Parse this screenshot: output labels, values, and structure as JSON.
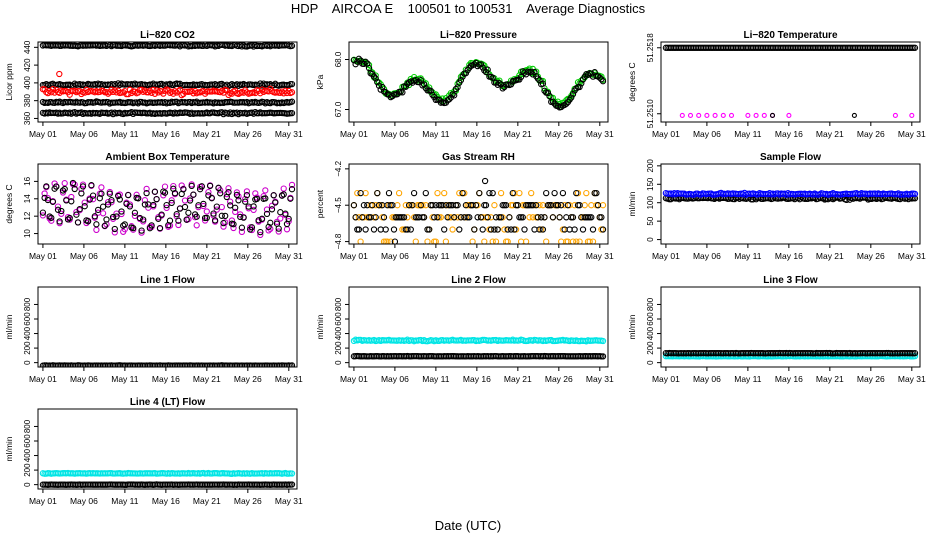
{
  "figure": {
    "title": "HDP    AIRCOA E    100501 to 100531    Average Diagnostics",
    "xlabel": "Date (UTC)"
  },
  "chart_data": [
    {
      "type": "scatter",
      "title": "Li−820 CO2",
      "ylabel": "Licor ppm",
      "yticks": [
        "360",
        "380",
        "400",
        "420",
        "440"
      ],
      "ylim": [
        356,
        446
      ],
      "series": [
        {
          "name": "black-upper",
          "color": "#000000",
          "pattern": "flat",
          "level": 442,
          "noise": 0.8
        },
        {
          "name": "black-mid",
          "color": "#000000",
          "pattern": "flat",
          "level": 398,
          "noise": 1.0
        },
        {
          "name": "red",
          "color": "#ff0000",
          "pattern": "flat",
          "level": 390,
          "noise": 2.5,
          "outliers": [
            [
              3,
              410
            ]
          ]
        },
        {
          "name": "black-low",
          "color": "#000000",
          "pattern": "flat",
          "level": 378,
          "noise": 0.8
        },
        {
          "name": "black-bottom",
          "color": "#000000",
          "pattern": "flat",
          "level": 366,
          "noise": 0.8
        }
      ]
    },
    {
      "type": "scatter",
      "title": "Li−820 Pressure",
      "ylabel": "kPa",
      "yticks": [
        "67.0",
        "68.0"
      ],
      "ylim": [
        66.75,
        68.35
      ],
      "series": [
        {
          "name": "green",
          "color": "#00cc00",
          "pattern": "wave",
          "level": 67.55,
          "amp": 0.45,
          "noise": 0.05
        },
        {
          "name": "black",
          "color": "#000000",
          "pattern": "wave",
          "level": 67.52,
          "amp": 0.45,
          "noise": 0.05
        }
      ]
    },
    {
      "type": "scatter",
      "title": "Li−820 Temperature",
      "ylabel": "degrees C",
      "yticks": [
        "51.2510",
        "51.2518"
      ],
      "ylim": [
        51.2509,
        51.25187
      ],
      "series": [
        {
          "name": "black-top",
          "color": "#000000",
          "pattern": "flat",
          "level": 51.2518,
          "noise": 0
        },
        {
          "name": "magenta-low",
          "color": "#ff00ff",
          "pattern": "sparse",
          "level": 51.25098,
          "days": [
            3,
            4,
            5,
            6,
            7,
            8,
            9,
            11,
            12,
            13,
            14,
            16,
            29,
            31
          ]
        },
        {
          "name": "black-low",
          "color": "#000000",
          "pattern": "sparse",
          "level": 51.25098,
          "days": [
            14,
            24
          ]
        }
      ]
    },
    {
      "type": "scatter",
      "title": "Ambient Box Temperature",
      "ylabel": "degrees C",
      "yticks": [
        "10",
        "12",
        "14",
        "16"
      ],
      "ylim": [
        8.8,
        18.0
      ],
      "series": [
        {
          "name": "magenta",
          "color": "#cc00cc",
          "pattern": "daily",
          "level": 13.0,
          "amp": 2.3,
          "noise": 0.4
        },
        {
          "name": "black",
          "color": "#000000",
          "pattern": "daily",
          "level": 13.0,
          "amp": 2.0,
          "noise": 0.4
        }
      ]
    },
    {
      "type": "scatter",
      "title": "Gas Stream RH",
      "ylabel": "percent",
      "yticks": [
        "−4.8",
        "−4.5",
        "−4.2"
      ],
      "ylim": [
        -4.82,
        -4.16
      ],
      "series": [
        {
          "name": "orange",
          "color": "#ffa500",
          "pattern": "levels",
          "levels": [
            -4.8,
            -4.7,
            -4.6,
            -4.5,
            -4.4
          ],
          "weights": [
            2,
            1,
            3,
            3,
            1
          ]
        },
        {
          "name": "black",
          "color": "#000000",
          "pattern": "levels",
          "levels": [
            -4.7,
            -4.6,
            -4.5,
            -4.4
          ],
          "weights": [
            2,
            4,
            4,
            1
          ],
          "outliers": [
            [
              6,
              -4.8
            ],
            [
              17,
              -4.3
            ]
          ]
        }
      ]
    },
    {
      "type": "scatter",
      "title": "Sample Flow",
      "ylabel": "ml/min",
      "yticks": [
        "0",
        "50",
        "100",
        "150",
        "200"
      ],
      "ylim": [
        -12,
        205
      ],
      "series": [
        {
          "name": "black",
          "color": "#000000",
          "pattern": "flat",
          "level": 112,
          "noise": 3
        },
        {
          "name": "blue",
          "color": "#0000ff",
          "pattern": "flat",
          "level": 124,
          "noise": 2
        }
      ]
    },
    {
      "type": "scatter",
      "title": "Line 1 Flow",
      "ylabel": "ml/min",
      "yticks": [
        "0",
        "200",
        "400",
        "600",
        "800"
      ],
      "ylim": [
        -60,
        1040
      ],
      "series": [
        {
          "name": "black",
          "color": "#000000",
          "pattern": "flat",
          "level": -40,
          "noise": 2
        }
      ]
    },
    {
      "type": "scatter",
      "title": "Line 2 Flow",
      "ylabel": "ml/min",
      "yticks": [
        "0",
        "200",
        "400",
        "600",
        "800"
      ],
      "ylim": [
        -60,
        1040
      ],
      "series": [
        {
          "name": "cyan",
          "color": "#00e5e5",
          "pattern": "flat",
          "level": 305,
          "noise": 8
        },
        {
          "name": "black",
          "color": "#000000",
          "pattern": "flat",
          "level": 88,
          "noise": 2
        }
      ]
    },
    {
      "type": "scatter",
      "title": "Line 3 Flow",
      "ylabel": "ml/min",
      "yticks": [
        "0",
        "200",
        "400",
        "600",
        "800"
      ],
      "ylim": [
        -60,
        1040
      ],
      "series": [
        {
          "name": "cyan",
          "color": "#00e5e5",
          "pattern": "flat",
          "level": 88,
          "noise": 3
        },
        {
          "name": "black",
          "color": "#000000",
          "pattern": "flat",
          "level": 130,
          "noise": 2
        }
      ]
    },
    {
      "type": "scatter",
      "title": "Line 4 (LT) Flow",
      "ylabel": "ml/min",
      "yticks": [
        "0",
        "200",
        "400",
        "600",
        "800"
      ],
      "ylim": [
        -60,
        1040
      ],
      "series": [
        {
          "name": "cyan",
          "color": "#00e5e5",
          "pattern": "flat",
          "level": 155,
          "noise": 4
        },
        {
          "name": "black",
          "color": "#000000",
          "pattern": "flat",
          "level": 0,
          "noise": 2
        }
      ]
    }
  ],
  "xaxis": {
    "xlim": [
      0.4,
      32.0
    ],
    "tick_days": [
      1,
      6,
      11,
      16,
      21,
      26,
      31
    ],
    "tick_labels": [
      "May 01",
      "May 06",
      "May 11",
      "May 16",
      "May 21",
      "May 26",
      "May 31"
    ]
  }
}
